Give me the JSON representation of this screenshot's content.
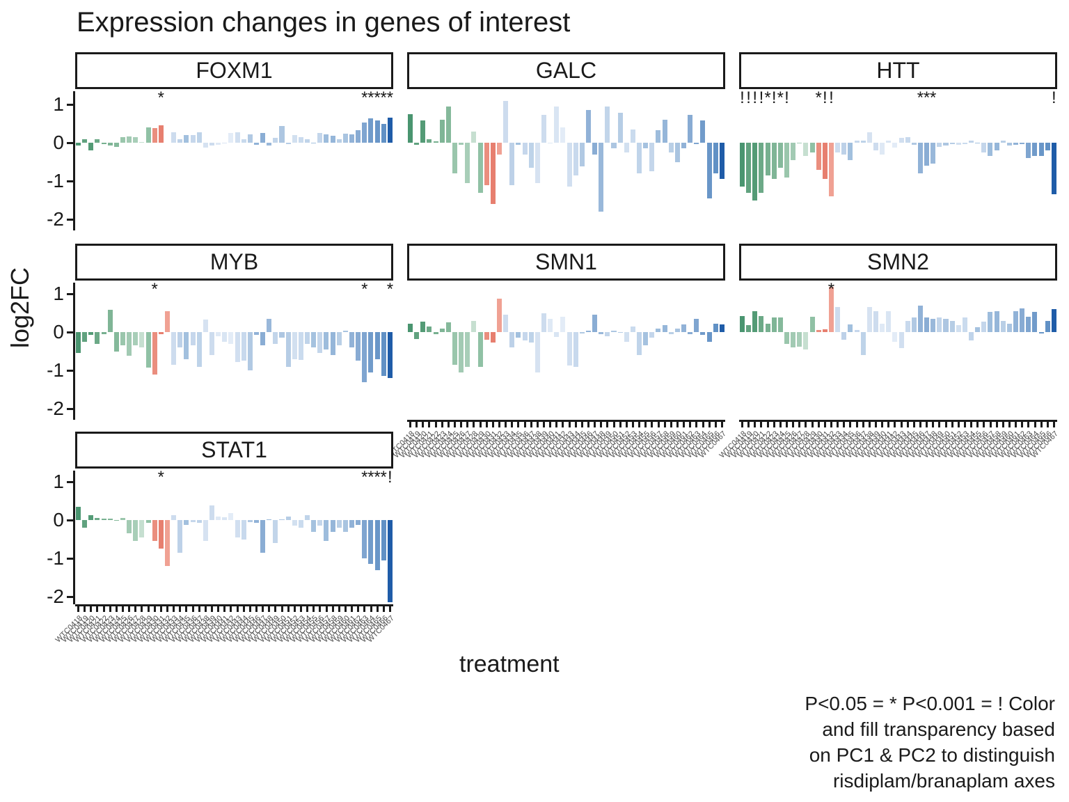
{
  "title": "Expression changes in genes of interest",
  "caption": {
    "lines": [
      "P<0.05 = * P<0.001 = ! Color",
      "and fill transparency based",
      "on PC1 & PC2 to distinguish",
      "risdiplam/branaplam axes"
    ]
  },
  "chart_data": {
    "type": "bar",
    "title": "Expression changes in genes of interest",
    "xlabel": "treatment",
    "ylabel": "log2FC",
    "ylim": [
      -2.3,
      1.35
    ],
    "y_ticks": [
      1,
      0,
      -1,
      -2
    ],
    "grid": false,
    "legend_note": "P<0.05 = * P<0.001 = ! Color and fill transparency based on PC1 & PC2 to distinguish risdiplam/branaplam axes",
    "categories": [
      "WTC0418",
      "WTC0419",
      "WTC0420",
      "WTC0421",
      "WTC0422",
      "WTC0423",
      "WTC0424",
      "WTC0425",
      "WTC0426",
      "WTC0427",
      "WTC0428",
      "WTC0429",
      "WTC0430",
      "WTC0431",
      "WTC0432",
      "WTC0433",
      "WTC0434",
      "WTC0435",
      "WTC0436",
      "WTC0437",
      "WTC0438",
      "WTC0439",
      "WTC0440",
      "WTC0441",
      "WTC0442",
      "WTC0443",
      "WTC0444",
      "WTC0445",
      "WTC0446",
      "WTC0447",
      "WTC0448",
      "WTC0449",
      "WTC0450",
      "WTC0451",
      "WTC0452",
      "WTC0453",
      "WTC0454",
      "WTC0455",
      "WTC0456",
      "WTC0457",
      "WTC0458",
      "WTC0459",
      "WTC0460",
      "WTC0461",
      "WTC0462",
      "WTC0463",
      "WTC0464",
      "WTC0465",
      "WTC0466",
      "WTC0467"
    ],
    "bar_colors": [
      "#4a9570",
      "#61a27f",
      "#549b76",
      "#6ca987",
      "#77b090",
      "#7fb596",
      "#85b99b",
      "#9ac6ac",
      "#a2cab3",
      "#a8ceb8",
      "#c6dfd0",
      "#90c1a5",
      "#ea8e7e",
      "#e77f6f",
      "#f0a193",
      "#cddcee",
      "#bdd1e8",
      "#a2c0de",
      "#c6d7ec",
      "#bed3e9",
      "#d6e2f1",
      "#cddcee",
      "#dfe9f5",
      "#d9e5f3",
      "#e3ecf7",
      "#d1dff0",
      "#c8d9ed",
      "#b1c9e3",
      "#91b2d7",
      "#8aadd4",
      "#99b8da",
      "#c2d5ea",
      "#adc6e1",
      "#b6cde5",
      "#d2e0f0",
      "#cadbee",
      "#c0d4ea",
      "#a5c2df",
      "#c4d6eb",
      "#9dbcdc",
      "#95b6d9",
      "#b9cfe6",
      "#a9c4e0",
      "#91b2d7",
      "#88abd3",
      "#7fa5d0",
      "#719bca",
      "#6996c8",
      "#6191c5",
      "#1f5ca8"
    ],
    "facets": [
      {
        "gene": "FOXM1",
        "col": 0,
        "row": 0,
        "y_axis": true,
        "x_axis": false,
        "values": [
          -0.07,
          0.1,
          -0.2,
          0.1,
          -0.04,
          -0.08,
          -0.1,
          0.15,
          0.17,
          0.15,
          0.02,
          0.4,
          0.38,
          0.45,
          0.0,
          0.28,
          0.1,
          0.2,
          0.2,
          0.28,
          -0.12,
          -0.07,
          -0.05,
          -0.02,
          0.25,
          0.28,
          0.1,
          0.22,
          -0.05,
          0.25,
          -0.08,
          0.12,
          0.43,
          -0.04,
          0.2,
          0.15,
          0.1,
          -0.02,
          0.26,
          0.22,
          0.18,
          0.09,
          0.24,
          0.21,
          0.33,
          0.53,
          0.64,
          0.58,
          0.5,
          0.65
        ],
        "sig": {
          "14": "*",
          "46": "*",
          "47": "*",
          "48": "*",
          "49": "*",
          "50": "*"
        }
      },
      {
        "gene": "GALC",
        "col": 1,
        "row": 0,
        "y_axis": false,
        "x_axis": false,
        "values": [
          0.75,
          -0.05,
          0.58,
          0.1,
          0.03,
          0.6,
          0.94,
          -0.8,
          -0.05,
          -1.05,
          0.3,
          -1.3,
          -1.1,
          -1.6,
          -0.3,
          1.1,
          -1.1,
          -0.05,
          -0.3,
          -0.65,
          -1.05,
          0.72,
          -0.02,
          0.95,
          0.4,
          -1.15,
          -0.85,
          -0.62,
          0.85,
          -0.3,
          -1.8,
          0.95,
          -0.15,
          0.78,
          -0.25,
          0.35,
          -0.8,
          -0.15,
          -0.75,
          0.32,
          0.6,
          -0.25,
          -0.5,
          -0.15,
          0.72,
          -0.03,
          0.58,
          -1.45,
          -0.8,
          -0.95
        ],
        "sig": {}
      },
      {
        "gene": "HTT",
        "col": 2,
        "row": 0,
        "y_axis": false,
        "x_axis": false,
        "values": [
          -1.15,
          -1.3,
          -1.5,
          -1.3,
          -0.85,
          -0.95,
          -0.65,
          -0.9,
          -0.45,
          -0.02,
          -0.35,
          -0.25,
          -0.7,
          -0.95,
          -1.4,
          -0.25,
          -0.3,
          -0.45,
          0.05,
          0.05,
          0.28,
          -0.2,
          -0.3,
          0.05,
          -0.12,
          0.12,
          0.15,
          -0.05,
          -0.8,
          -0.6,
          -0.55,
          -0.1,
          -0.08,
          -0.04,
          -0.05,
          -0.03,
          0.05,
          -0.02,
          -0.25,
          -0.35,
          -0.2,
          0.05,
          -0.08,
          -0.05,
          -0.03,
          -0.4,
          -0.35,
          -0.35,
          -0.2,
          -1.35
        ],
        "sig": {
          "1": "!",
          "2": "!",
          "3": "!",
          "4": "!",
          "5": "*",
          "6": "!",
          "7": "*",
          "8": "!",
          "13": "*",
          "14": "!",
          "15": "!",
          "29": "*",
          "30": "*",
          "31": "*",
          "50": "!"
        }
      },
      {
        "gene": "MYB",
        "col": 0,
        "row": 1,
        "y_axis": true,
        "x_axis": false,
        "values": [
          -0.55,
          -0.25,
          -0.08,
          -0.3,
          -0.05,
          0.58,
          -0.5,
          -0.35,
          -0.62,
          -0.35,
          -0.4,
          -0.92,
          -1.1,
          -0.05,
          0.55,
          -0.85,
          -0.4,
          -0.7,
          -0.35,
          -0.9,
          0.32,
          -0.6,
          -0.1,
          -0.25,
          -0.3,
          -0.78,
          -0.75,
          -1.0,
          -0.08,
          -0.35,
          0.35,
          -0.3,
          -0.15,
          -0.9,
          -0.7,
          -0.72,
          -0.3,
          -0.4,
          -0.55,
          -0.45,
          -0.6,
          -0.35,
          0.03,
          -0.4,
          -0.75,
          -1.3,
          -1.05,
          -0.7,
          -1.15,
          -1.2
        ],
        "sig": {
          "13": "*",
          "46": "*",
          "50": "*"
        }
      },
      {
        "gene": "SMN1",
        "col": 1,
        "row": 1,
        "y_axis": false,
        "x_axis": true,
        "values": [
          0.22,
          -0.18,
          0.28,
          0.15,
          -0.05,
          0.1,
          0.25,
          -0.85,
          -1.05,
          -0.9,
          0.3,
          -0.9,
          -0.2,
          -0.28,
          0.88,
          0.45,
          -0.4,
          -0.15,
          -0.22,
          -0.28,
          -1.05,
          0.5,
          0.35,
          -0.12,
          0.4,
          -0.88,
          -0.9,
          -0.03,
          0.03,
          0.45,
          -0.05,
          -0.1,
          0.03,
          -0.02,
          -0.25,
          0.15,
          -0.6,
          -0.35,
          -0.15,
          0.1,
          0.18,
          -0.05,
          0.1,
          0.2,
          -0.05,
          0.35,
          -0.08,
          -0.25,
          0.22,
          0.2
        ],
        "sig": {}
      },
      {
        "gene": "SMN2",
        "col": 2,
        "row": 1,
        "y_axis": false,
        "x_axis": true,
        "values": [
          0.42,
          0.18,
          0.55,
          0.42,
          0.22,
          0.38,
          0.38,
          -0.3,
          -0.4,
          -0.38,
          -0.45,
          0.4,
          0.05,
          0.07,
          1.18,
          0.65,
          -0.2,
          0.2,
          0.05,
          -0.6,
          0.65,
          0.55,
          0.22,
          0.55,
          -0.25,
          -0.42,
          0.3,
          0.38,
          0.7,
          0.38,
          0.35,
          0.38,
          0.35,
          0.3,
          0.18,
          0.38,
          -0.22,
          0.12,
          0.28,
          0.52,
          0.55,
          0.3,
          0.22,
          0.55,
          0.62,
          0.4,
          0.52,
          -0.03,
          0.3,
          0.6
        ],
        "sig": {
          "15": "*"
        }
      },
      {
        "gene": "STAT1",
        "col": 0,
        "row": 2,
        "y_axis": true,
        "x_axis": true,
        "values": [
          0.35,
          -0.2,
          0.12,
          0.05,
          0.04,
          0.03,
          -0.02,
          0.06,
          -0.35,
          -0.55,
          -0.45,
          -0.08,
          -0.55,
          -0.75,
          -1.2,
          0.12,
          -0.85,
          -0.12,
          -0.05,
          -0.08,
          -0.55,
          0.38,
          0.1,
          0.08,
          0.18,
          -0.45,
          -0.5,
          -0.05,
          -0.08,
          -0.85,
          0.02,
          -0.6,
          0.02,
          0.1,
          -0.15,
          -0.2,
          0.12,
          -0.3,
          -0.15,
          -0.55,
          -0.3,
          -0.2,
          -0.3,
          -0.2,
          -0.12,
          -1.0,
          -1.15,
          -1.3,
          -1.05,
          -2.15
        ],
        "sig": {
          "14": "*",
          "46": "*",
          "47": "*",
          "48": "*",
          "49": "*",
          "50": "!"
        }
      }
    ]
  }
}
